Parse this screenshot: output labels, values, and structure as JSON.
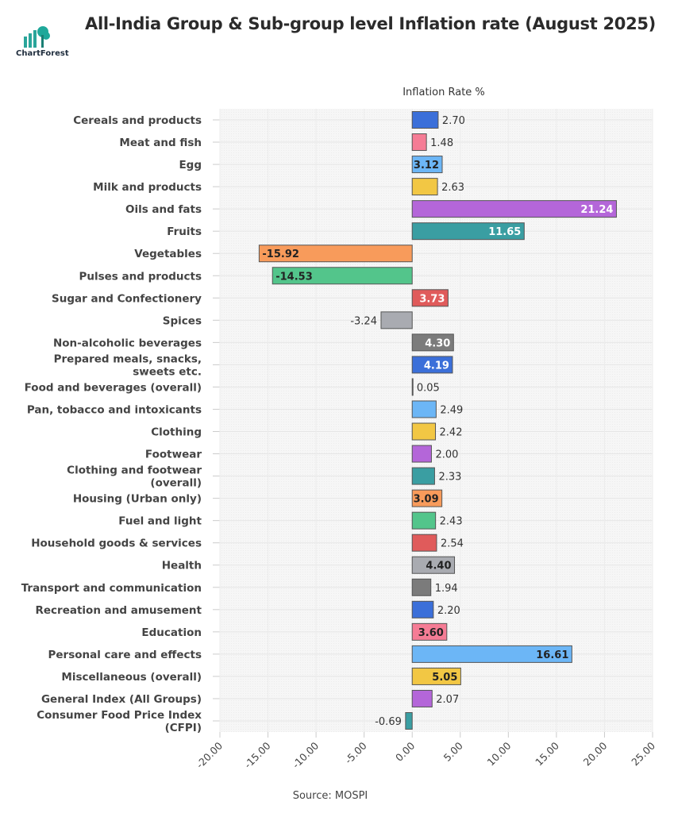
{
  "title": "All-India Group & Sub-group level Inflation rate (August 2025)",
  "logo": {
    "text": "ChartForest"
  },
  "source": "Source: MOSPI",
  "chart_data": {
    "type": "bar",
    "orientation": "horizontal",
    "title": "All-India Group & Sub-group level Inflation rate (August 2025)",
    "xlabel": "Inflation Rate %",
    "xlim": [
      -20,
      25
    ],
    "xticks": [
      "-20.00",
      "-15.00",
      "-10.00",
      "-5.00",
      "0.00",
      "5.00",
      "10.00",
      "15.00",
      "20.00",
      "25.00"
    ],
    "grid": true,
    "palette": [
      "#3b6fd9",
      "#f57c95",
      "#6cb6f6",
      "#f2c744",
      "#b466d9",
      "#3a9ea2",
      "#f89b5b",
      "#53c58b",
      "#e05b5b",
      "#a9abb1",
      "#7b7b7b"
    ],
    "categories": [
      [
        "Cereals and products"
      ],
      [
        "Meat and fish"
      ],
      [
        "Egg"
      ],
      [
        "Milk and products"
      ],
      [
        "Oils and fats"
      ],
      [
        "Fruits"
      ],
      [
        "Vegetables"
      ],
      [
        "Pulses and products"
      ],
      [
        "Sugar and Confectionery"
      ],
      [
        "Spices"
      ],
      [
        "Non-alcoholic beverages"
      ],
      [
        "Prepared meals, snacks,",
        "sweets etc."
      ],
      [
        "Food and beverages (overall)"
      ],
      [
        "Pan, tobacco and intoxicants"
      ],
      [
        "Clothing"
      ],
      [
        "Footwear"
      ],
      [
        "Clothing and footwear",
        "(overall)"
      ],
      [
        "Housing (Urban only)"
      ],
      [
        "Fuel and light"
      ],
      [
        "Household goods & services"
      ],
      [
        "Health"
      ],
      [
        "Transport and communication"
      ],
      [
        "Recreation and amusement"
      ],
      [
        "Education"
      ],
      [
        "Personal care and effects"
      ],
      [
        "Miscellaneous (overall)"
      ],
      [
        "General Index (All Groups)"
      ],
      [
        "Consumer Food Price Index",
        "(CFPI)"
      ]
    ],
    "values": [
      2.7,
      1.48,
      3.12,
      2.63,
      21.24,
      11.65,
      -15.92,
      -14.53,
      3.73,
      -3.24,
      4.3,
      4.19,
      0.05,
      2.49,
      2.42,
      2.0,
      2.33,
      3.09,
      2.43,
      2.54,
      4.4,
      1.94,
      2.2,
      3.6,
      16.61,
      5.05,
      2.07,
      -0.69
    ],
    "labels": [
      "2.70",
      "1.48",
      "3.12",
      "2.63",
      "21.24",
      "11.65",
      "-15.92",
      "-14.53",
      "3.73",
      "-3.24",
      "4.30",
      "4.19",
      "0.05",
      "2.49",
      "2.42",
      "2.00",
      "2.33",
      "3.09",
      "2.43",
      "2.54",
      "4.40",
      "1.94",
      "2.20",
      "3.60",
      "16.61",
      "5.05",
      "2.07",
      "-0.69"
    ],
    "label_inside": [
      false,
      false,
      true,
      false,
      true,
      true,
      true,
      true,
      true,
      false,
      true,
      true,
      false,
      false,
      false,
      false,
      false,
      true,
      false,
      false,
      true,
      false,
      false,
      true,
      true,
      true,
      false,
      false
    ]
  }
}
